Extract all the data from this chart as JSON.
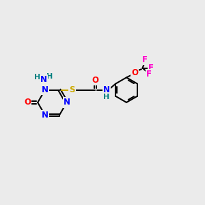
{
  "bg_color": "#ebebeb",
  "atom_colors": {
    "C": "#000000",
    "N": "#0000ff",
    "O": "#ff0000",
    "S": "#ccaa00",
    "F": "#ff00cc",
    "H": "#008080"
  },
  "bond_lw": 1.5,
  "font_size": 8.5
}
